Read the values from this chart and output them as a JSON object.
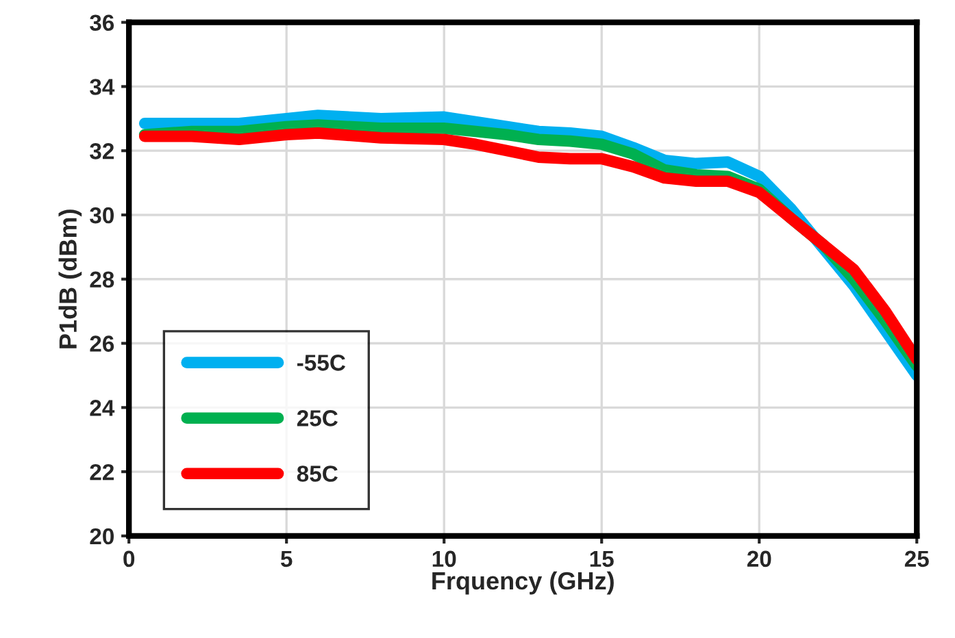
{
  "chart_data": {
    "type": "line",
    "xlabel": "Frquency (GHz)",
    "ylabel": "P1dB (dBm)",
    "x": [
      0.5,
      2,
      3.5,
      5,
      6,
      8,
      10,
      11,
      12,
      13,
      14,
      15,
      16,
      17,
      18,
      19,
      20,
      21,
      22,
      23,
      24,
      25
    ],
    "series": [
      {
        "name": "-55C",
        "color": "#00b0f0",
        "values": [
          32.85,
          32.85,
          32.85,
          33.0,
          33.1,
          33.0,
          33.05,
          32.9,
          32.75,
          32.6,
          32.55,
          32.45,
          32.1,
          31.7,
          31.6,
          31.65,
          31.2,
          30.2,
          29.0,
          27.8,
          26.4,
          25.0
        ]
      },
      {
        "name": "25C",
        "color": "#00b050",
        "values": [
          32.5,
          32.6,
          32.6,
          32.75,
          32.8,
          32.7,
          32.7,
          32.6,
          32.5,
          32.35,
          32.3,
          32.2,
          31.9,
          31.4,
          31.25,
          31.2,
          30.8,
          29.9,
          29.1,
          28.0,
          26.7,
          25.3
        ]
      },
      {
        "name": "85C",
        "color": "#ff0000",
        "values": [
          32.45,
          32.45,
          32.35,
          32.5,
          32.55,
          32.4,
          32.35,
          32.2,
          32.0,
          31.8,
          31.75,
          31.75,
          31.5,
          31.15,
          31.05,
          31.05,
          30.7,
          29.9,
          29.1,
          28.3,
          27.0,
          25.5
        ]
      }
    ],
    "xlim": [
      0,
      25
    ],
    "xticks": [
      0,
      5,
      10,
      15,
      20,
      25
    ],
    "ylim": [
      20,
      36
    ],
    "yticks": [
      20,
      22,
      24,
      26,
      28,
      30,
      32,
      34,
      36
    ],
    "grid": true,
    "legend": "bottom left",
    "marker": "none",
    "line_style": "solid"
  }
}
